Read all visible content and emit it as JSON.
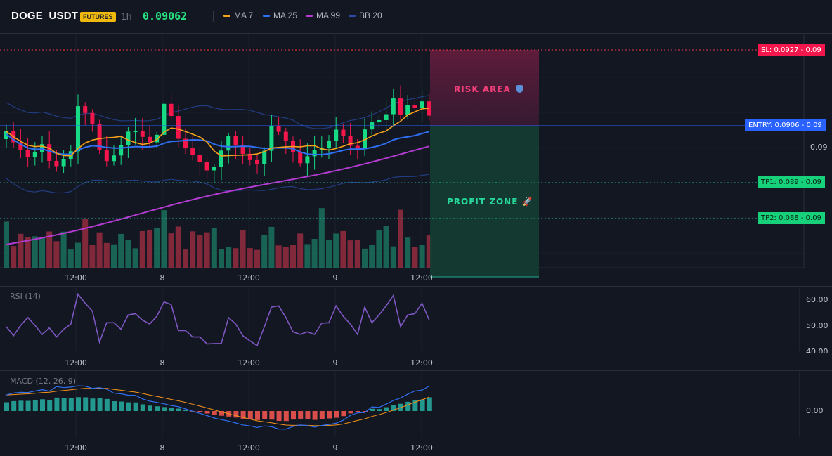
{
  "header": {
    "symbol": "DOGE_USDT",
    "badge": "FUTURES",
    "timeframe": "1h",
    "last_price": "0.09062",
    "indicators": [
      {
        "name": "MA 7",
        "color": "#f7a21b"
      },
      {
        "name": "MA 25",
        "color": "#2f6ff3"
      },
      {
        "name": "MA 99",
        "color": "#b43bd1"
      },
      {
        "name": "BB 20",
        "color": "#2a4dab"
      }
    ]
  },
  "trade": {
    "risk_label": "RISK AREA",
    "risk_icon": "shield-icon",
    "profit_label": "PROFIT ZONE",
    "profit_icon": "rocket-icon",
    "sl_tag": "SL: 0.0927",
    "sl_axis": "0.09",
    "entry_tag": "ENTRY: 0.0906",
    "entry_axis": "0.09",
    "tp1_tag": "TP1: 0.089",
    "tp1_axis": "0.09",
    "tp2_tag": "TP2: 0.088",
    "tp2_axis": "0.09",
    "colors": {
      "sl": "#f23645",
      "entry": "#2962ff",
      "tp": "#22ab94"
    }
  },
  "price_axis": {
    "label": "0.09"
  },
  "time_axis": [
    "12:00",
    "8",
    "12:00",
    "9",
    "12:00"
  ],
  "rsi": {
    "label": "RSI (14)",
    "axis": [
      "60.00",
      "50.00",
      "40.00"
    ],
    "color": "#7e57c2",
    "chart_data": {
      "type": "line",
      "ylim": [
        40,
        62
      ],
      "values": [
        49.5,
        46,
        50,
        53,
        50,
        46.5,
        49,
        45.5,
        48.5,
        50.5,
        62,
        58.5,
        55.5,
        43.5,
        51,
        51,
        48.5,
        54,
        54.5,
        52,
        50.5,
        53.5,
        59,
        58,
        48,
        48,
        45.5,
        45.5,
        42.8,
        43,
        43,
        53,
        50.5,
        46,
        44,
        42.2,
        49.5,
        57,
        57.5,
        53,
        47.5,
        46.5,
        47.5,
        46.5,
        50.8,
        51,
        57.5,
        53.5,
        50.5,
        46.5,
        57,
        51,
        54,
        57.5,
        61.5,
        49.5,
        54,
        54.5,
        58.5,
        52
      ]
    }
  },
  "macd": {
    "label": "MACD (12, 26, 9)",
    "axis": [
      "0.00"
    ]
  },
  "price_chart": {
    "chart_data": {
      "type": "candlestick",
      "bars": 60,
      "last_close": 0.09062
    }
  }
}
